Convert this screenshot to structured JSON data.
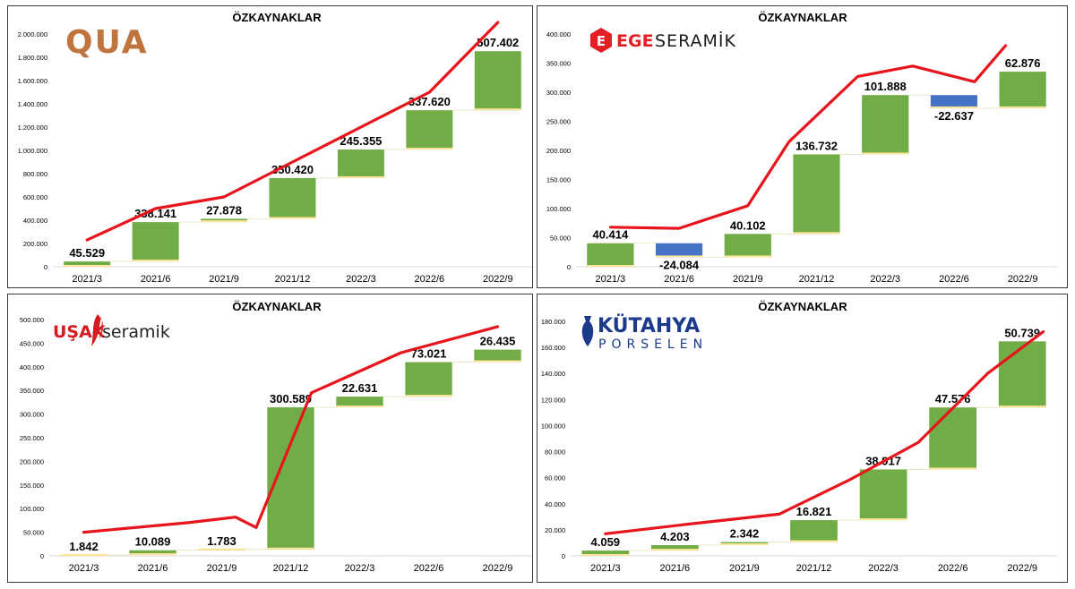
{
  "colors": {
    "increase": "#70AD47",
    "decrease": "#4472C4",
    "line": "#E8141C",
    "base_edge": "#FFE699"
  },
  "chart_data": [
    {
      "type": "waterfall",
      "title": "ÖZKAYNAKLAR",
      "company": "QUA",
      "logo_text": "QUA",
      "categories": [
        "2021/3",
        "2021/6",
        "2021/9",
        "2021/12",
        "2022/3",
        "2022/6",
        "2022/9"
      ],
      "values": [
        45529,
        338141,
        27878,
        350420,
        245355,
        337620,
        507402
      ],
      "labels": [
        "45.529",
        "338.141",
        "27.878",
        "350.420",
        "245.355",
        "337.620",
        "507.402"
      ],
      "line_values": [
        230000,
        500000,
        600000,
        900000,
        1200000,
        1500000,
        2100000
      ],
      "ylim": [
        0,
        2000000
      ],
      "yticks": [
        0,
        200000,
        400000,
        600000,
        800000,
        1000000,
        1200000,
        1400000,
        1600000,
        1800000,
        2000000
      ],
      "ytick_labels": [
        "0",
        "200.000",
        "400.000",
        "600.000",
        "800.000",
        "1.000.000",
        "1.200.000",
        "1.400.000",
        "1.600.000",
        "1.800.000",
        "2.000.000"
      ]
    },
    {
      "type": "waterfall",
      "title": "ÖZKAYNAKLAR",
      "company": "EGE SERAMİK",
      "logo_text_bold": "EGE",
      "logo_text_light": "SERAMİK",
      "categories": [
        "2021/3",
        "2021/6",
        "2021/9",
        "2021/12",
        "2022/3",
        "2022/6",
        "2022/9"
      ],
      "values": [
        40414,
        -24084,
        40102,
        136732,
        101888,
        -22637,
        62876
      ],
      "labels": [
        "40.414",
        "-24.084",
        "40.102",
        "136.732",
        "101.888",
        "-22.637",
        "62.876"
      ],
      "line_values": [
        68000,
        66000,
        105000,
        215000,
        327000,
        345000,
        318000,
        380000
      ],
      "line_x_index": [
        0,
        1,
        2,
        2.6,
        3.6,
        4.4,
        5.3,
        5.75
      ],
      "ylim": [
        0,
        400000
      ],
      "yticks": [
        0,
        50000,
        100000,
        150000,
        200000,
        250000,
        300000,
        350000,
        400000
      ],
      "ytick_labels": [
        "0",
        "50.000",
        "100.000",
        "150.000",
        "200.000",
        "250.000",
        "300.000",
        "350.000",
        "400.000"
      ]
    },
    {
      "type": "waterfall",
      "title": "ÖZKAYNAKLAR",
      "company": "UŞAK SERAMİK",
      "logo_text_bold": "UŞAK",
      "logo_text_light": "seramik",
      "categories": [
        "2021/3",
        "2021/6",
        "2021/9",
        "2021/12",
        "2022/3",
        "2022/6",
        "2022/9"
      ],
      "values": [
        1842,
        10089,
        1783,
        300589,
        22631,
        73021,
        26435
      ],
      "labels": [
        "1.842",
        "10.089",
        "1.783",
        "300.589",
        "22.631",
        "73.021",
        "26.435"
      ],
      "line_values": [
        50000,
        70000,
        82000,
        60000,
        345000,
        430000,
        485000
      ],
      "line_x_index": [
        0,
        1.5,
        2.2,
        2.5,
        3.3,
        4.6,
        6
      ],
      "ylim": [
        0,
        500000
      ],
      "yticks": [
        0,
        50000,
        100000,
        150000,
        200000,
        250000,
        300000,
        350000,
        400000,
        450000,
        500000
      ],
      "ytick_labels": [
        "0",
        "50.000",
        "100.000",
        "150.000",
        "200.000",
        "250.000",
        "300.000",
        "350.000",
        "400.000",
        "450.000",
        "500.000"
      ]
    },
    {
      "type": "waterfall",
      "title": "ÖZKAYNAKLAR",
      "company": "KÜTAHYA PORSELEN",
      "logo_text_top": "KÜTAHYA",
      "logo_text_bottom": "PORSELEN",
      "categories": [
        "2021/3",
        "2021/6",
        "2021/9",
        "2021/12",
        "2022/3",
        "2022/6",
        "2022/9"
      ],
      "values": [
        4059,
        4203,
        2342,
        16821,
        38917,
        47576,
        50739
      ],
      "labels": [
        "4.059",
        "4.203",
        "2.342",
        "16.821",
        "38.917",
        "47.576",
        "50.739"
      ],
      "line_values": [
        17000,
        25000,
        32000,
        58000,
        87000,
        140000,
        172000
      ],
      "line_x_index": [
        0,
        1.3,
        2.5,
        3.5,
        4.5,
        5.5,
        6.3
      ],
      "ylim": [
        0,
        180000
      ],
      "yticks": [
        0,
        20000,
        40000,
        60000,
        80000,
        100000,
        120000,
        140000,
        160000,
        180000
      ],
      "ytick_labels": [
        "0",
        "20.000",
        "40.000",
        "60.000",
        "80.000",
        "100.000",
        "120.000",
        "140.000",
        "160.000",
        "180.000"
      ]
    }
  ]
}
